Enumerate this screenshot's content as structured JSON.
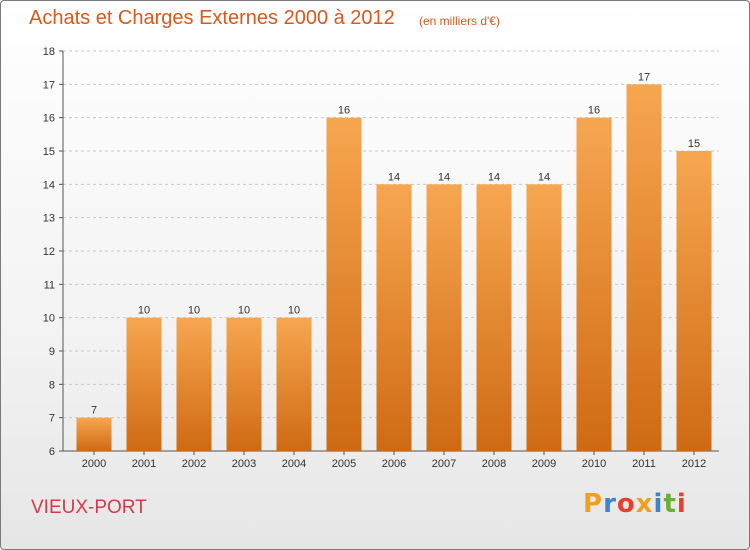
{
  "title": "Achats et Charges Externes 2000 à 2012",
  "unit_note": "(en milliers d'€)",
  "commune": "VIEUX-PORT",
  "logo": {
    "text": "Proxiti",
    "colors": [
      "#f0a020",
      "#3a86c8",
      "#e8402a",
      "#f0a020",
      "#3a86c8",
      "#6ab030",
      "#e8402a"
    ]
  },
  "colors": {
    "bar_top": "#f7a650",
    "bar_bottom": "#cf6a14",
    "title": "#d45a1e",
    "commune": "#d43a4a"
  },
  "chart_data": {
    "type": "bar",
    "categories": [
      "2000",
      "2001",
      "2002",
      "2003",
      "2004",
      "2005",
      "2006",
      "2007",
      "2008",
      "2009",
      "2010",
      "2011",
      "2012"
    ],
    "values": [
      7,
      10,
      10,
      10,
      10,
      16,
      14,
      14,
      14,
      14,
      16,
      17,
      15
    ],
    "ylim": [
      6,
      18
    ],
    "yticks": [
      6,
      7,
      8,
      9,
      10,
      11,
      12,
      13,
      14,
      15,
      16,
      17,
      18
    ],
    "grid": true,
    "title": "Achats et Charges Externes 2000 à 2012",
    "xlabel": "",
    "ylabel": ""
  }
}
